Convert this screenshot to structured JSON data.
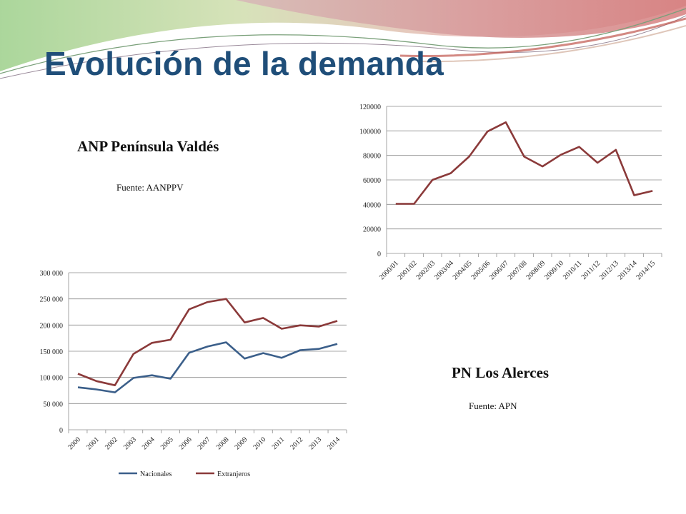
{
  "slide": {
    "title": "Evolución de la demanda",
    "left_subtitle": "ANP Península Valdés",
    "left_source": "Fuente: AANPPV",
    "right_subtitle": "PN Los Alerces",
    "right_source": "Fuente: APN"
  },
  "colors": {
    "title": "#1f4e79",
    "nacionales": "#3b5f8a",
    "extranjeros": "#8b3a3a",
    "grid": "#8c8c8c"
  },
  "chart_data": [
    {
      "type": "line",
      "categories": [
        "2000/01",
        "2001/02",
        "2002/03",
        "2003/04",
        "2004/05",
        "2005/06",
        "2006/07",
        "2007/08",
        "2008/09",
        "2009/10",
        "2010/11",
        "2011/12",
        "2012/13",
        "2013/14",
        "2014/15"
      ],
      "series": [
        {
          "values": [
            40500,
            40500,
            60000,
            65500,
            79000,
            99500,
            107000,
            79000,
            71000,
            80500,
            87000,
            74000,
            84500,
            47500,
            51000
          ]
        }
      ],
      "yticks": [
        "0",
        "20000",
        "40000",
        "60000",
        "80000",
        "100000",
        "120000"
      ],
      "ylim": [
        0,
        120000
      ],
      "grid": true,
      "legend": "none"
    },
    {
      "type": "line",
      "categories": [
        "2000",
        "2001",
        "2002",
        "2003",
        "2004",
        "2005",
        "2006",
        "2007",
        "2008",
        "2009",
        "2010",
        "2011",
        "2012",
        "2013",
        "2014"
      ],
      "series": [
        {
          "name": "Nacionales",
          "values": [
            81000,
            77000,
            71500,
            99000,
            104000,
            97500,
            147000,
            159000,
            167000,
            136000,
            146500,
            137500,
            152000,
            154500,
            164000
          ]
        },
        {
          "name": "Extranjeros",
          "values": [
            107000,
            93000,
            85000,
            145000,
            166000,
            172000,
            230000,
            244000,
            250000,
            205000,
            213500,
            193000,
            199500,
            197000,
            208000
          ]
        }
      ],
      "yticks": [
        "0",
        "50 000",
        "100 000",
        "150 000",
        "200 000",
        "250 000",
        "300 000"
      ],
      "ylim": [
        0,
        300000
      ],
      "grid": true,
      "legend": "bottom"
    }
  ]
}
